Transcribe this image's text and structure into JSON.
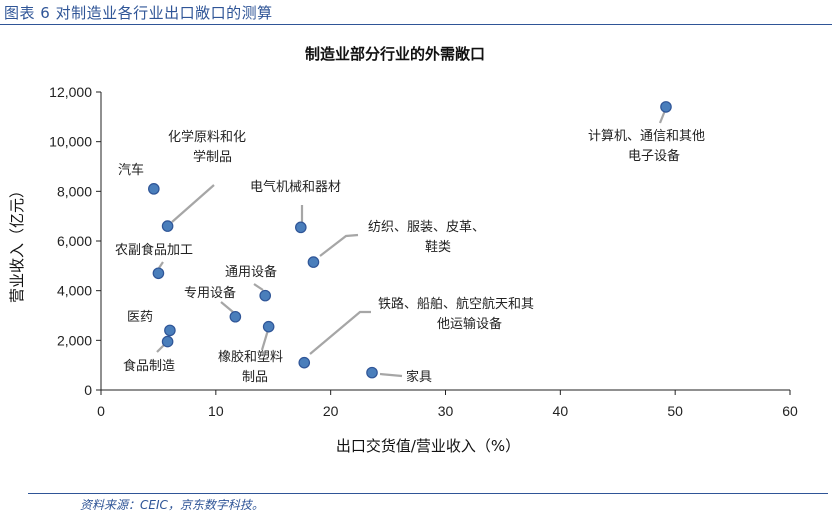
{
  "figure": {
    "caption": "图表 6 对制造业各行业出口敞口的测算",
    "source": "资料来源：CEIC，京东数字科技。"
  },
  "chart_data": {
    "type": "scatter",
    "title": "制造业部分行业的外需敞口",
    "xlabel": "出口交货值/营业收入（%）",
    "ylabel": "营业收入（亿元）",
    "xlim": [
      0,
      60
    ],
    "ylim": [
      0,
      12000
    ],
    "xticks": [
      {
        "v": 0,
        "label": "0"
      },
      {
        "v": 10,
        "label": "10"
      },
      {
        "v": 20,
        "label": "20"
      },
      {
        "v": 30,
        "label": "30"
      },
      {
        "v": 40,
        "label": "40"
      },
      {
        "v": 50,
        "label": "50"
      },
      {
        "v": 60,
        "label": "60"
      }
    ],
    "yticks": [
      {
        "v": 0,
        "label": "0"
      },
      {
        "v": 2000,
        "label": "2,000"
      },
      {
        "v": 4000,
        "label": "4,000"
      },
      {
        "v": 6000,
        "label": "6,000"
      },
      {
        "v": 8000,
        "label": "8,000"
      },
      {
        "v": 10000,
        "label": "10,000"
      },
      {
        "v": 12000,
        "label": "12,000"
      }
    ],
    "marker_color": "#4a7ebb",
    "marker_edge": "#2f5597",
    "points": [
      {
        "name": "计算机、通信和其他电子设备",
        "lines": [
          "计算机、通信和其他",
          "电子设备"
        ],
        "x": 49.2,
        "y": 11400
      },
      {
        "name": "汽车",
        "lines": [
          "汽车"
        ],
        "x": 4.6,
        "y": 8100
      },
      {
        "name": "化学原料和化学制品",
        "lines": [
          "化学原料和化",
          "学制品"
        ],
        "x": 5.8,
        "y": 6600
      },
      {
        "name": "电气机械和器材",
        "lines": [
          "电气机械和器材"
        ],
        "x": 17.4,
        "y": 6550
      },
      {
        "name": "纺织、服装、皮革、鞋类",
        "lines": [
          "纺织、服装、皮革、",
          "鞋类"
        ],
        "x": 18.5,
        "y": 5150
      },
      {
        "name": "农副食品加工",
        "lines": [
          "农副食品加工"
        ],
        "x": 5.0,
        "y": 4700
      },
      {
        "name": "通用设备",
        "lines": [
          "通用设备"
        ],
        "x": 14.3,
        "y": 3800
      },
      {
        "name": "专用设备",
        "lines": [
          "专用设备"
        ],
        "x": 11.7,
        "y": 2950
      },
      {
        "name": "医药",
        "lines": [
          "医药"
        ],
        "x": 6.0,
        "y": 2400
      },
      {
        "name": "橡胶和塑料制品",
        "lines": [
          "橡胶和塑料",
          "制品"
        ],
        "x": 14.6,
        "y": 2550
      },
      {
        "name": "食品制造",
        "lines": [
          "食品制造"
        ],
        "x": 5.8,
        "y": 1950
      },
      {
        "name": "铁路、船舶、航空航天和其他运输设备",
        "lines": [
          "铁路、船舶、航空航天和其",
          "他运输设备"
        ],
        "x": 17.7,
        "y": 1100
      },
      {
        "name": "家具",
        "lines": [
          "家具"
        ],
        "x": 23.6,
        "y": 700
      }
    ]
  }
}
